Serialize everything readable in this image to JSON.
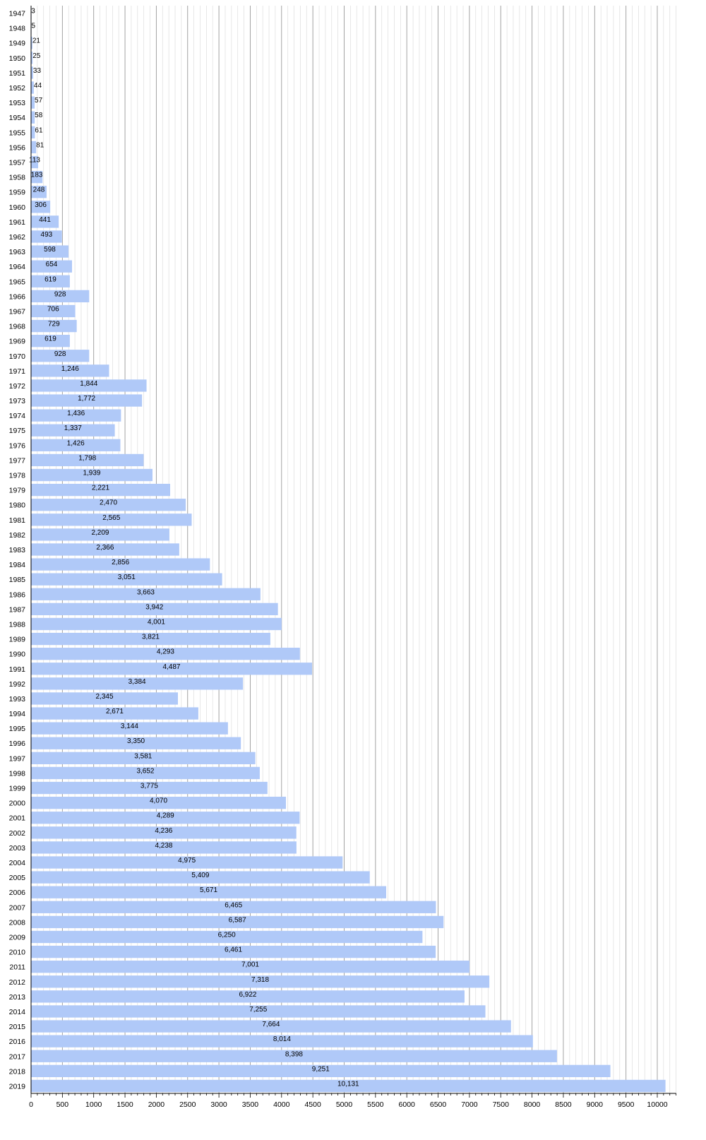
{
  "colors": {
    "bar": "#b0c9f8",
    "minor_grid": "#dddddd",
    "major_grid": "#999999",
    "axis": "#000000"
  },
  "chart_data": {
    "type": "bar",
    "orientation": "horizontal",
    "title": "",
    "xlabel": "",
    "ylabel": "",
    "xlim": [
      0,
      10300
    ],
    "grid": true,
    "xticks": [
      0,
      500,
      1000,
      1500,
      2000,
      2500,
      3000,
      3500,
      4000,
      4500,
      5000,
      5500,
      6000,
      6500,
      7000,
      7500,
      8000,
      8500,
      9000,
      9500,
      10000
    ],
    "categories": [
      "1947",
      "1948",
      "1949",
      "1950",
      "1951",
      "1952",
      "1953",
      "1954",
      "1955",
      "1956",
      "1957",
      "1958",
      "1959",
      "1960",
      "1961",
      "1962",
      "1963",
      "1964",
      "1965",
      "1966",
      "1967",
      "1968",
      "1969",
      "1970",
      "1971",
      "1972",
      "1973",
      "1974",
      "1975",
      "1976",
      "1977",
      "1978",
      "1979",
      "1980",
      "1981",
      "1982",
      "1983",
      "1984",
      "1985",
      "1986",
      "1987",
      "1988",
      "1989",
      "1990",
      "1991",
      "1992",
      "1993",
      "1994",
      "1995",
      "1996",
      "1997",
      "1998",
      "1999",
      "2000",
      "2001",
      "2002",
      "2003",
      "2004",
      "2005",
      "2006",
      "2007",
      "2008",
      "2009",
      "2010",
      "2011",
      "2012",
      "2013",
      "2014",
      "2015",
      "2016",
      "2017",
      "2018",
      "2019"
    ],
    "values": [
      3,
      5,
      21,
      25,
      33,
      44,
      57,
      58,
      61,
      81,
      113,
      183,
      248,
      306,
      441,
      493,
      598,
      654,
      619,
      928,
      706,
      729,
      619,
      928,
      1246,
      1844,
      1772,
      1436,
      1337,
      1426,
      1798,
      1939,
      2221,
      2470,
      2565,
      2209,
      2366,
      2856,
      3051,
      3663,
      3942,
      4001,
      3821,
      4293,
      4487,
      3384,
      2345,
      2671,
      3144,
      3350,
      3581,
      3652,
      3775,
      4070,
      4289,
      4236,
      4238,
      4975,
      5409,
      5671,
      6465,
      6587,
      6250,
      6461,
      7001,
      7318,
      6922,
      7255,
      7664,
      8014,
      8398,
      9251,
      10131
    ],
    "value_labels": [
      "3",
      "5",
      "21",
      "25",
      "33",
      "44",
      "57",
      "58",
      "61",
      "81",
      "113",
      "183",
      "248",
      "306",
      "441",
      "493",
      "598",
      "654",
      "619",
      "928",
      "706",
      "729",
      "619",
      "928",
      "1,246",
      "1,844",
      "1,772",
      "1,436",
      "1,337",
      "1,426",
      "1,798",
      "1,939",
      "2,221",
      "2,470",
      "2,565",
      "2,209",
      "2,366",
      "2,856",
      "3,051",
      "3,663",
      "3,942",
      "4,001",
      "3,821",
      "4,293",
      "4,487",
      "3,384",
      "2,345",
      "2,671",
      "3,144",
      "3,350",
      "3,581",
      "3,652",
      "3,775",
      "4,070",
      "4,289",
      "4,236",
      "4,238",
      "4,975",
      "5,409",
      "5,671",
      "6,465",
      "6,587",
      "6,250",
      "6,461",
      "7,001",
      "7,318",
      "6,922",
      "7,255",
      "7,664",
      "8,014",
      "8,398",
      "9,251",
      "10,131"
    ]
  }
}
